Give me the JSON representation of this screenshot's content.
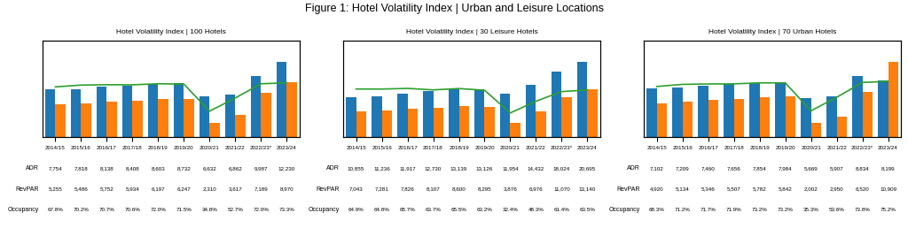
{
  "title": "Figure 1: Hotel Volatility Index | Urban and Leisure Locations",
  "chart_data": [
    {
      "type": "bar",
      "title": "Hotel Volatility Index | 100 Hotels",
      "categories": [
        "2014/15",
        "2015/16",
        "2016/17",
        "2017/18",
        "2018/19",
        "2019/20",
        "2020/21",
        "2021/22",
        "2022/23*",
        "2023/24"
      ],
      "series": [
        {
          "name": "ADR",
          "type": "bar",
          "values": [
            7754,
            7818,
            8138,
            8408,
            8603,
            8732,
            6632,
            6862,
            9987,
            12230
          ],
          "value_labels": [
            "7,754",
            "7,818",
            "8,138",
            "8,408",
            "8,603",
            "8,732",
            "6,632",
            "6,862",
            "9,987",
            "12,230"
          ]
        },
        {
          "name": "RevPAR",
          "type": "bar",
          "values": [
            5255,
            5486,
            5752,
            5934,
            6197,
            6247,
            2310,
            3617,
            7189,
            8970
          ],
          "value_labels": [
            "5,255",
            "5,486",
            "5,752",
            "5,934",
            "6,197",
            "6,247",
            "2,310",
            "3,617",
            "7,189",
            "8,970"
          ]
        },
        {
          "name": "Occupancy",
          "type": "line",
          "axis": "y2",
          "values": [
            67.8,
            70.2,
            70.7,
            70.6,
            72.0,
            71.5,
            34.8,
            52.7,
            72.0,
            73.3
          ],
          "value_labels": [
            "67.8%",
            "70.2%",
            "70.7%",
            "70.6%",
            "72.0%",
            "71.5%",
            "34.8%",
            "52.7%",
            "72.0%",
            "73.3%"
          ]
        }
      ],
      "ylim": [
        0,
        15654.4
      ],
      "yticks": [],
      "y2lim": [
        0,
        130
      ],
      "y2ticks": [],
      "tick_labels": "x",
      "data_labels": true
    },
    {
      "type": "bar",
      "title": "Hotel Volatility Index | 30 Leisure Hotels",
      "categories": [
        "2014/15",
        "2015/16",
        "2016/17",
        "2017/18",
        "2018/19",
        "2019/20",
        "2020/21",
        "2021/22",
        "2022/23*",
        "2023/24"
      ],
      "series": [
        {
          "name": "ADR",
          "type": "bar",
          "values": [
            10855,
            11236,
            11917,
            12730,
            13139,
            13126,
            11954,
            14432,
            18024,
            20695
          ],
          "value_labels": [
            "10,855",
            "11,236",
            "11,917",
            "12,730",
            "13,139",
            "13,126",
            "11,954",
            "14,432",
            "18,024",
            "20,695"
          ]
        },
        {
          "name": "RevPAR",
          "type": "bar",
          "values": [
            7043,
            7281,
            7826,
            8107,
            8600,
            8295,
            3876,
            6976,
            11070,
            13140
          ],
          "value_labels": [
            "7,043",
            "7,281",
            "7,826",
            "8,107",
            "8,600",
            "8,295",
            "3,876",
            "6,976",
            "11,070",
            "13,140"
          ]
        },
        {
          "name": "Occupancy",
          "type": "line",
          "axis": "y2",
          "values": [
            64.9,
            64.8,
            65.7,
            63.7,
            65.5,
            63.2,
            32.4,
            48.3,
            61.4,
            63.5
          ],
          "value_labels": [
            "64.9%",
            "64.8%",
            "65.7%",
            "63.7%",
            "65.5%",
            "63.2%",
            "32.4%",
            "48.3%",
            "61.4%",
            "63.5%"
          ]
        }
      ],
      "ylim": [
        0,
        26489.6
      ],
      "yticks": [],
      "y2lim": [
        0,
        130
      ],
      "y2ticks": [],
      "tick_labels": "x",
      "data_labels": true
    },
    {
      "type": "bar",
      "title": "Hotel Volatility Index | 70 Urban Hotels",
      "categories": [
        "2014/15",
        "2015/16",
        "2016/17",
        "2017/18",
        "2018/19",
        "2019/20",
        "2020/21",
        "2021/22",
        "2022/23*",
        "2023/24"
      ],
      "series": [
        {
          "name": "ADR",
          "type": "bar",
          "values": [
            7102,
            7209,
            7460,
            7656,
            7854,
            7984,
            5669,
            5907,
            8834,
            8199
          ],
          "value_labels": [
            "7,102",
            "7,209",
            "7,460",
            "7,656",
            "7,854",
            "7,984",
            "5,669",
            "5,907",
            "8,834",
            "8,199"
          ]
        },
        {
          "name": "RevPAR",
          "type": "bar",
          "values": [
            4920,
            5134,
            5346,
            5507,
            5782,
            5842,
            2002,
            2950,
            6520,
            10909
          ],
          "value_labels": [
            "4,920",
            "5,134",
            "5,346",
            "5,507",
            "5,782",
            "5,842",
            "2,002",
            "2,950",
            "6,520",
            "10,909"
          ]
        },
        {
          "name": "Occupancy",
          "type": "line",
          "axis": "y2",
          "values": [
            68.3,
            71.2,
            71.7,
            71.9,
            73.2,
            73.2,
            35.3,
            53.6,
            73.8,
            75.2
          ],
          "value_labels": [
            "68.3%",
            "71.2%",
            "71.7%",
            "71.9%",
            "73.2%",
            "73.2%",
            "35.3%",
            "53.6%",
            "73.8%",
            "75.2%"
          ]
        }
      ],
      "ylim": [
        0,
        13963.52
      ],
      "yticks": [],
      "y2lim": [
        0,
        130
      ],
      "y2ticks": [],
      "tick_labels": "x",
      "data_labels": true
    }
  ]
}
